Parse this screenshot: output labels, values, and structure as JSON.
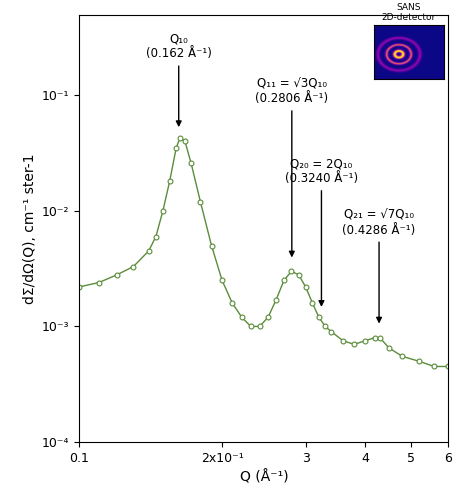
{
  "chart_data": {
    "type": "line",
    "x_label": "Q (Å⁻¹)",
    "y_label": "dΣ/dΩ(Q), cm⁻¹ ster-1",
    "log": true,
    "grid": false,
    "xlim": [
      0.1,
      0.6
    ],
    "ylim": [
      0.0001,
      0.5
    ],
    "xticks": [
      {
        "value": 0.1,
        "label": "0.1"
      },
      {
        "value": 0.2,
        "label": "2x10⁻¹"
      },
      {
        "value": 0.3,
        "label": "3"
      },
      {
        "value": 0.4,
        "label": "4"
      },
      {
        "value": 0.5,
        "label": "5"
      },
      {
        "value": 0.6,
        "label": "6"
      }
    ],
    "yticks": [
      {
        "value": 0.0001,
        "label": "10⁻⁴"
      },
      {
        "value": 0.001,
        "label": "10⁻³"
      },
      {
        "value": 0.01,
        "label": "10⁻²"
      },
      {
        "value": 0.1,
        "label": "10⁻¹"
      }
    ],
    "series": [
      {
        "color": "#5b8c3a",
        "marker": "o",
        "line_style": "solid",
        "x": [
          0.1,
          0.11,
          0.12,
          0.13,
          0.14,
          0.145,
          0.15,
          0.155,
          0.16,
          0.163,
          0.167,
          0.172,
          0.18,
          0.19,
          0.2,
          0.21,
          0.22,
          0.23,
          0.24,
          0.25,
          0.26,
          0.27,
          0.28,
          0.29,
          0.3,
          0.31,
          0.32,
          0.33,
          0.34,
          0.36,
          0.38,
          0.4,
          0.42,
          0.43,
          0.45,
          0.48,
          0.52,
          0.56,
          0.6
        ],
        "values": [
          0.0022,
          0.0024,
          0.0028,
          0.0033,
          0.0045,
          0.006,
          0.01,
          0.018,
          0.035,
          0.043,
          0.04,
          0.026,
          0.012,
          0.005,
          0.0025,
          0.0016,
          0.0012,
          0.001,
          0.001,
          0.0012,
          0.0017,
          0.0025,
          0.003,
          0.0028,
          0.0022,
          0.0016,
          0.0012,
          0.001,
          0.0009,
          0.00075,
          0.0007,
          0.00075,
          0.0008,
          0.0008,
          0.00065,
          0.00055,
          0.0005,
          0.00045,
          0.00045
        ]
      }
    ],
    "annotations": [
      {
        "text": "Q₁₀\n(0.162 Å⁻¹)",
        "x": 0.162
      },
      {
        "text": "Q₁₁ = √3Q₁₀\n(0.2806 Å⁻¹)",
        "x": 0.2806
      },
      {
        "text": "Q₂₀ = 2Q₁₀\n(0.3240 Å⁻¹)",
        "x": 0.324
      },
      {
        "text": "Q₂₁ = √7Q₁₀\n(0.4286 Å⁻¹)",
        "x": 0.4286
      }
    ],
    "inset_title": "SANS\n2D-detector"
  }
}
